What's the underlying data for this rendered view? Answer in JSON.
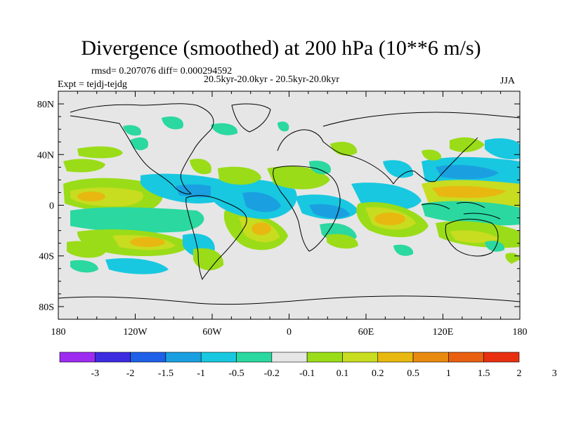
{
  "title": "Divergence (smoothed) at 200 hPa (10**6 m/s)",
  "stats_line": "rmsd= 0.207076 diff= 0.000294592",
  "expt_line": "Expt = tejdj-tejdg",
  "range_line": "20.5kyr-20.0kyr - 20.5kyr-20.0kyr",
  "season": "JJA",
  "lat_labels": [
    {
      "text": "80N",
      "lat": 80
    },
    {
      "text": "40N",
      "lat": 40
    },
    {
      "text": "0",
      "lat": 0
    },
    {
      "text": "40S",
      "lat": -40
    },
    {
      "text": "80S",
      "lat": -80
    }
  ],
  "lon_labels": [
    {
      "text": "180",
      "lon": -180
    },
    {
      "text": "120W",
      "lon": -120
    },
    {
      "text": "60W",
      "lon": -60
    },
    {
      "text": "0",
      "lon": 0
    },
    {
      "text": "60E",
      "lon": 60
    },
    {
      "text": "120E",
      "lon": 120
    },
    {
      "text": "180",
      "lon": 180
    }
  ],
  "colorbar": {
    "colors": [
      "#9d2cf0",
      "#3d2ce0",
      "#1e60e8",
      "#1aa0e0",
      "#18c8e0",
      "#2ad8a0",
      "#e6e6e6",
      "#9adc18",
      "#c8dc20",
      "#e8b810",
      "#e88a10",
      "#e86010",
      "#e83010"
    ],
    "labels": [
      "-3",
      "-2",
      "-1.5",
      "-1",
      "-0.5",
      "-0.2",
      "-0.1",
      "0.1",
      "0.2",
      "0.5",
      "1",
      "1.5",
      "2",
      "3"
    ]
  },
  "colors": {
    "ocean_bg": "#e6e6e6",
    "coast": "#000000"
  }
}
